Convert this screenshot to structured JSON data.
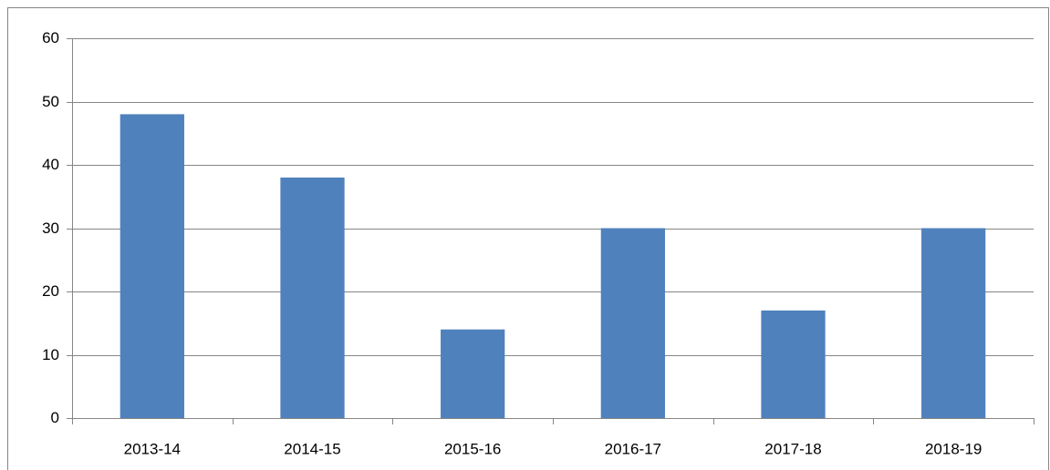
{
  "chart_data": {
    "type": "bar",
    "categories": [
      "2013-14",
      "2014-15",
      "2015-16",
      "2016-17",
      "2017-18",
      "2018-19"
    ],
    "values": [
      48,
      38,
      14,
      30,
      17,
      30
    ],
    "color": "#4f81bd",
    "ylim": [
      0,
      60
    ],
    "yticks": [
      0,
      10,
      20,
      30,
      40,
      50,
      60
    ],
    "grid": true
  }
}
